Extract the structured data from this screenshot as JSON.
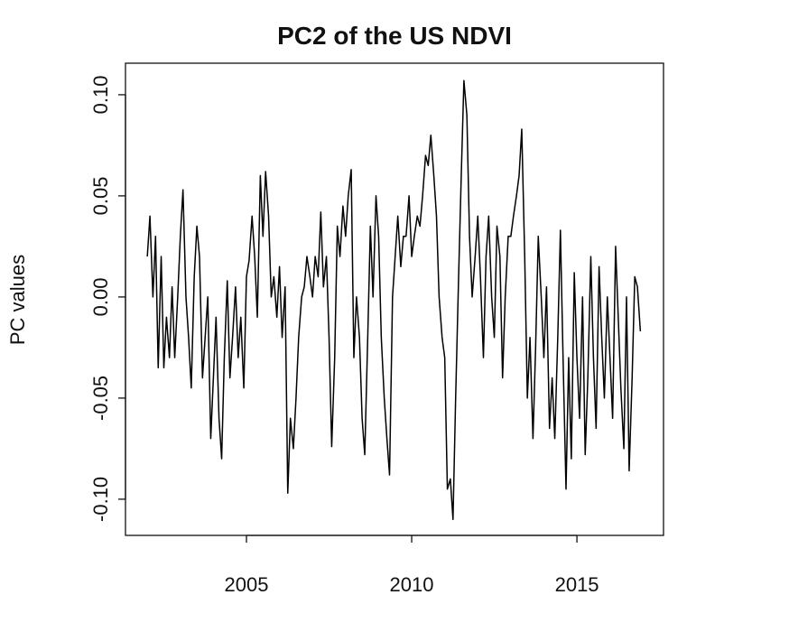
{
  "chart_data": {
    "type": "line",
    "title": "PC2 of the US NDVI",
    "ylabel": "PC values",
    "color": "#000000",
    "x": [
      2002.0,
      2002.08,
      2002.17,
      2002.25,
      2002.33,
      2002.42,
      2002.5,
      2002.58,
      2002.67,
      2002.75,
      2002.83,
      2002.92,
      2003.0,
      2003.08,
      2003.17,
      2003.25,
      2003.33,
      2003.42,
      2003.5,
      2003.58,
      2003.67,
      2003.75,
      2003.83,
      2003.92,
      2004.0,
      2004.08,
      2004.17,
      2004.25,
      2004.33,
      2004.42,
      2004.5,
      2004.58,
      2004.67,
      2004.75,
      2004.83,
      2004.92,
      2005.0,
      2005.08,
      2005.17,
      2005.25,
      2005.33,
      2005.42,
      2005.5,
      2005.58,
      2005.67,
      2005.75,
      2005.83,
      2005.92,
      2006.0,
      2006.08,
      2006.17,
      2006.25,
      2006.33,
      2006.42,
      2006.5,
      2006.58,
      2006.67,
      2006.75,
      2006.83,
      2006.92,
      2007.0,
      2007.08,
      2007.17,
      2007.25,
      2007.33,
      2007.42,
      2007.5,
      2007.58,
      2007.67,
      2007.75,
      2007.83,
      2007.92,
      2008.0,
      2008.08,
      2008.17,
      2008.25,
      2008.33,
      2008.42,
      2008.5,
      2008.58,
      2008.67,
      2008.75,
      2008.83,
      2008.92,
      2009.0,
      2009.08,
      2009.17,
      2009.25,
      2009.33,
      2009.42,
      2009.5,
      2009.58,
      2009.67,
      2009.75,
      2009.83,
      2009.92,
      2010.0,
      2010.08,
      2010.17,
      2010.25,
      2010.33,
      2010.42,
      2010.5,
      2010.58,
      2010.67,
      2010.75,
      2010.83,
      2010.92,
      2011.0,
      2011.08,
      2011.17,
      2011.25,
      2011.33,
      2011.42,
      2011.5,
      2011.58,
      2011.67,
      2011.75,
      2011.83,
      2011.92,
      2012.0,
      2012.08,
      2012.17,
      2012.25,
      2012.33,
      2012.42,
      2012.5,
      2012.58,
      2012.67,
      2012.75,
      2012.83,
      2012.92,
      2013.0,
      2013.08,
      2013.17,
      2013.25,
      2013.33,
      2013.42,
      2013.5,
      2013.58,
      2013.67,
      2013.75,
      2013.83,
      2013.92,
      2014.0,
      2014.08,
      2014.17,
      2014.25,
      2014.33,
      2014.42,
      2014.5,
      2014.58,
      2014.67,
      2014.75,
      2014.83,
      2014.92,
      2015.0,
      2015.08,
      2015.17,
      2015.25,
      2015.33,
      2015.42,
      2015.5,
      2015.58,
      2015.67,
      2015.75,
      2015.83,
      2015.92,
      2016.0,
      2016.08,
      2016.17,
      2016.25,
      2016.33,
      2016.42,
      2016.5,
      2016.58,
      2016.67,
      2016.75,
      2016.83,
      2016.92
    ],
    "values": [
      0.02,
      0.04,
      0.0,
      0.03,
      -0.035,
      0.02,
      -0.035,
      -0.01,
      -0.03,
      0.005,
      -0.03,
      0.0,
      0.03,
      0.053,
      0.0,
      -0.02,
      -0.045,
      0.01,
      0.035,
      0.02,
      -0.04,
      -0.02,
      0.0,
      -0.07,
      -0.04,
      -0.01,
      -0.06,
      -0.08,
      -0.03,
      0.008,
      -0.04,
      -0.02,
      0.005,
      -0.03,
      -0.01,
      -0.045,
      0.01,
      0.018,
      0.04,
      0.02,
      -0.01,
      0.06,
      0.03,
      0.062,
      0.04,
      0.0,
      0.01,
      -0.01,
      0.015,
      -0.02,
      0.005,
      -0.097,
      -0.06,
      -0.075,
      -0.05,
      -0.02,
      0.0,
      0.005,
      0.02,
      0.01,
      0.0,
      0.02,
      0.01,
      0.042,
      0.005,
      0.02,
      -0.02,
      -0.074,
      -0.03,
      0.035,
      0.02,
      0.045,
      0.03,
      0.05,
      0.063,
      -0.03,
      0.0,
      -0.02,
      -0.06,
      -0.078,
      -0.02,
      0.035,
      0.0,
      0.05,
      0.03,
      -0.02,
      -0.05,
      -0.07,
      -0.088,
      0.0,
      0.02,
      0.04,
      0.015,
      0.03,
      0.03,
      0.05,
      0.02,
      0.03,
      0.04,
      0.035,
      0.05,
      0.07,
      0.065,
      0.08,
      0.06,
      0.04,
      0.0,
      -0.02,
      -0.03,
      -0.095,
      -0.09,
      -0.11,
      -0.05,
      0.01,
      0.06,
      0.107,
      0.09,
      0.03,
      0.0,
      0.02,
      0.04,
      0.01,
      -0.03,
      0.02,
      0.04,
      0.0,
      -0.02,
      0.035,
      0.02,
      -0.04,
      0.0,
      0.03,
      0.03,
      0.04,
      0.05,
      0.06,
      0.083,
      0.02,
      -0.05,
      -0.02,
      -0.07,
      -0.025,
      0.03,
      0.0,
      -0.03,
      0.005,
      -0.065,
      -0.04,
      -0.07,
      -0.02,
      0.033,
      -0.03,
      -0.095,
      -0.03,
      -0.08,
      0.012,
      -0.03,
      -0.06,
      0.0,
      -0.078,
      -0.04,
      0.02,
      -0.03,
      -0.065,
      0.015,
      -0.02,
      -0.05,
      0.0,
      -0.03,
      -0.06,
      0.025,
      -0.01,
      -0.045,
      -0.075,
      0.0,
      -0.086,
      -0.04,
      0.01,
      0.005,
      -0.017
    ],
    "xlim": [
      2001.34,
      2017.62
    ],
    "ylim": [
      -0.1179,
      0.1156
    ],
    "xticks": [
      2005,
      2010,
      2015
    ],
    "yticks": [
      {
        "value": -0.1,
        "label": "-0.10"
      },
      {
        "value": -0.05,
        "label": "-0.05"
      },
      {
        "value": 0,
        "label": "0.00"
      },
      {
        "value": 0.05,
        "label": "0.05"
      },
      {
        "value": 0.1,
        "label": "0.10"
      }
    ]
  }
}
